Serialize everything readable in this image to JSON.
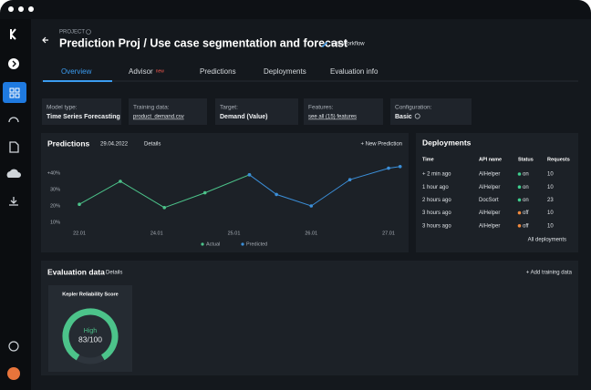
{
  "header": {
    "eyebrow": "PROJECT",
    "title": "Prediction Proj / Use case segmentation and forecast",
    "action": "Edit Workflow"
  },
  "tabs": [
    {
      "label": "Overview"
    },
    {
      "label": "Advisor",
      "badge": "new"
    },
    {
      "label": "Predictions"
    },
    {
      "label": "Deployments"
    },
    {
      "label": "Evaluation info"
    }
  ],
  "info_cards": [
    {
      "label": "Model type:",
      "value": "Time Series Forecasting"
    },
    {
      "label": "Training data:",
      "value": "product_demand.csv"
    },
    {
      "label": "Target:",
      "value": "Demand (Value)"
    },
    {
      "label": "Features:",
      "value": "see all (15) features"
    },
    {
      "label": "Configuration:",
      "value": "Basic"
    }
  ],
  "predictions": {
    "title": "Predictions",
    "date": "29.04.2022",
    "details": "Details",
    "action": "+ New Prediction"
  },
  "chart_data": {
    "type": "line",
    "series": [
      {
        "name": "Actual",
        "color": "#4cc38a",
        "x": [
          0,
          1.06,
          2.2,
          3.25,
          4.4
        ],
        "values": [
          21,
          35,
          19,
          28,
          39
        ]
      },
      {
        "name": "Predicted",
        "color": "#3b8fd9",
        "x": [
          4.4,
          5.1,
          6,
          7,
          8,
          8.3
        ],
        "values": [
          39,
          27,
          20,
          36,
          43,
          44
        ]
      }
    ],
    "xlim": [
      -0.3,
      8.4
    ],
    "xticks": [
      {
        "value": 0,
        "label": "22.01"
      },
      {
        "value": 2,
        "label": "24.01"
      },
      {
        "value": 4,
        "label": "25.01"
      },
      {
        "value": 6,
        "label": "26.01"
      },
      {
        "value": 8,
        "label": "27.01"
      }
    ],
    "ylim": [
      6,
      46
    ],
    "yticks": [
      {
        "value": 10,
        "label": "10%"
      },
      {
        "value": 20,
        "label": "20%"
      },
      {
        "value": 30,
        "label": "30%"
      },
      {
        "value": 40,
        "label": "+40%"
      }
    ],
    "grid": false,
    "legend": "bottom"
  },
  "deployments": {
    "title": "Deployments",
    "columns": [
      "Time",
      "API name",
      "Status",
      "Requests"
    ],
    "rows": [
      [
        "+ 2 min ago",
        "AIHelper",
        "on",
        "10"
      ],
      [
        "1 hour ago",
        "AIHelper",
        "on",
        "10"
      ],
      [
        "2 hours ago",
        "DocSort",
        "on",
        "23"
      ],
      [
        "3 hours ago",
        "AIHelper",
        "off",
        "10"
      ],
      [
        "3 hours ago",
        "AIHelper",
        "off",
        "10"
      ]
    ],
    "status_colors": {
      "on": "#3ecf8e",
      "off": "#f08a3e"
    },
    "footer": "All deployments"
  },
  "evaluation": {
    "title": "Evaluation data",
    "details": "Details",
    "action": "+ Add training data",
    "score": {
      "title": "Kepler Reliability Score",
      "level": "High",
      "value": 83,
      "max": 100,
      "label": "83/100"
    }
  }
}
